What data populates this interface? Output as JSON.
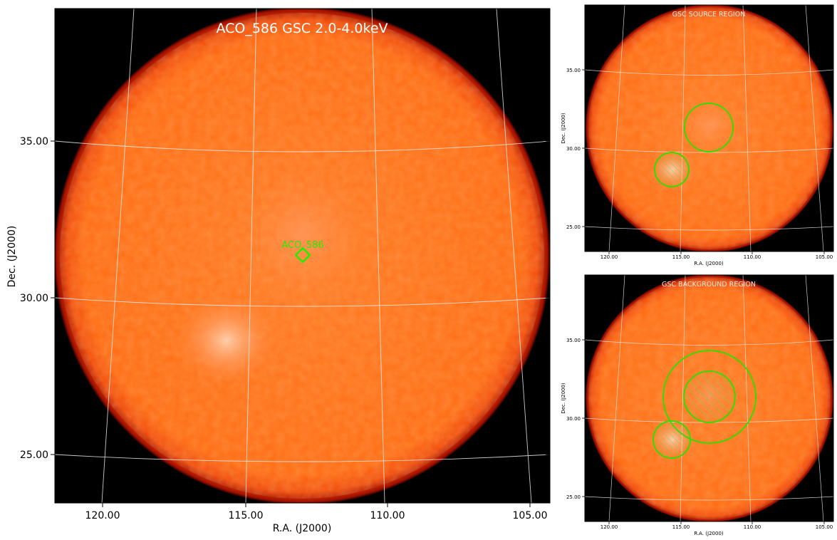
{
  "main_panel": {
    "title": "ACO_586 GSC 2.0-4.0keV",
    "xlabel": "R.A. (J2000)",
    "ylabel": "Dec. (J2000)",
    "x_ticks": [
      "120.00",
      "115.00",
      "110.00",
      "105.00"
    ],
    "y_ticks": [
      "35.00",
      "30.00",
      "25.00"
    ],
    "marker_label": "ACO_586",
    "marker_color": "#22ee00"
  },
  "source_panel": {
    "title": "GSC SOURCE REGION",
    "xlabel": "R.A. (J2000)",
    "ylabel": "Dec. (J2000)",
    "x_ticks": [
      "120.00",
      "115.00",
      "110.00",
      "105.00"
    ],
    "y_ticks": [
      "35.00",
      "30.00",
      "25.00"
    ]
  },
  "background_panel": {
    "title": "GSC BACKGROUND REGION",
    "xlabel": "R.A. (J2000)",
    "ylabel": "Dec. (J2000)",
    "x_ticks": [
      "120.00",
      "115.00",
      "110.00",
      "105.00"
    ],
    "y_ticks": [
      "35.00",
      "30.00",
      "25.00"
    ]
  },
  "colors": {
    "disk": "#ff6a10",
    "disk_edge": "#b01000",
    "background": "#000000",
    "region": "#33dd00",
    "grid": "#e8e8e8"
  }
}
